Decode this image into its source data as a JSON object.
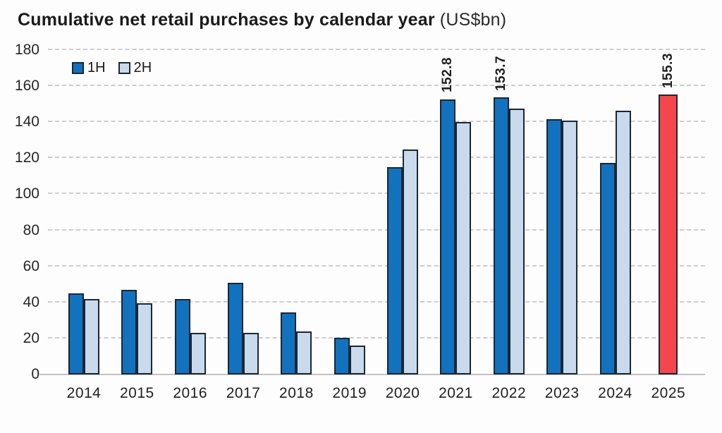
{
  "title": {
    "main": "Cumulative net retail purchases by calendar year",
    "unit": "(US$bn)"
  },
  "legend": [
    {
      "label": "1H",
      "color": "#1272BE"
    },
    {
      "label": "2H",
      "color": "#C9DAEC"
    }
  ],
  "colors": {
    "h1": "#1272BE",
    "h2": "#C9DAEC",
    "forecast": "#F6464D",
    "bar_border": "#1B2733",
    "gridline": "#CDCDCD",
    "axis_line": "#C2C2C2",
    "text": "#262626"
  },
  "chart_data": {
    "type": "bar",
    "title": "Cumulative net retail purchases by calendar year (US$bn)",
    "xlabel": "",
    "ylabel": "US$bn",
    "ylim": [
      0,
      180
    ],
    "ytick_step": 20,
    "grid": "horizontal-dashed",
    "legend_position": "top-left-inside",
    "categories": [
      "2014",
      "2015",
      "2016",
      "2017",
      "2018",
      "2019",
      "2020",
      "2021",
      "2022",
      "2023",
      "2024",
      "2025"
    ],
    "series": [
      {
        "name": "1H",
        "color_key": "h1",
        "values": [
          45,
          47,
          42,
          51,
          34.5,
          20.5,
          115,
          152.8,
          153.7,
          141.5,
          117.5,
          null
        ]
      },
      {
        "name": "2H",
        "color_key": "h2",
        "values": [
          42,
          39.5,
          23,
          23,
          24,
          16,
          125,
          140,
          147.5,
          141,
          146.5,
          null
        ]
      }
    ],
    "single_bars": [
      {
        "category": "2025",
        "value": 155.3,
        "color_key": "forecast"
      }
    ],
    "data_labels": [
      {
        "category": "2021",
        "series": "1H",
        "text": "152.8"
      },
      {
        "category": "2022",
        "series": "1H",
        "text": "153.7"
      },
      {
        "category": "2025",
        "series": "single",
        "text": "155.3"
      }
    ]
  }
}
